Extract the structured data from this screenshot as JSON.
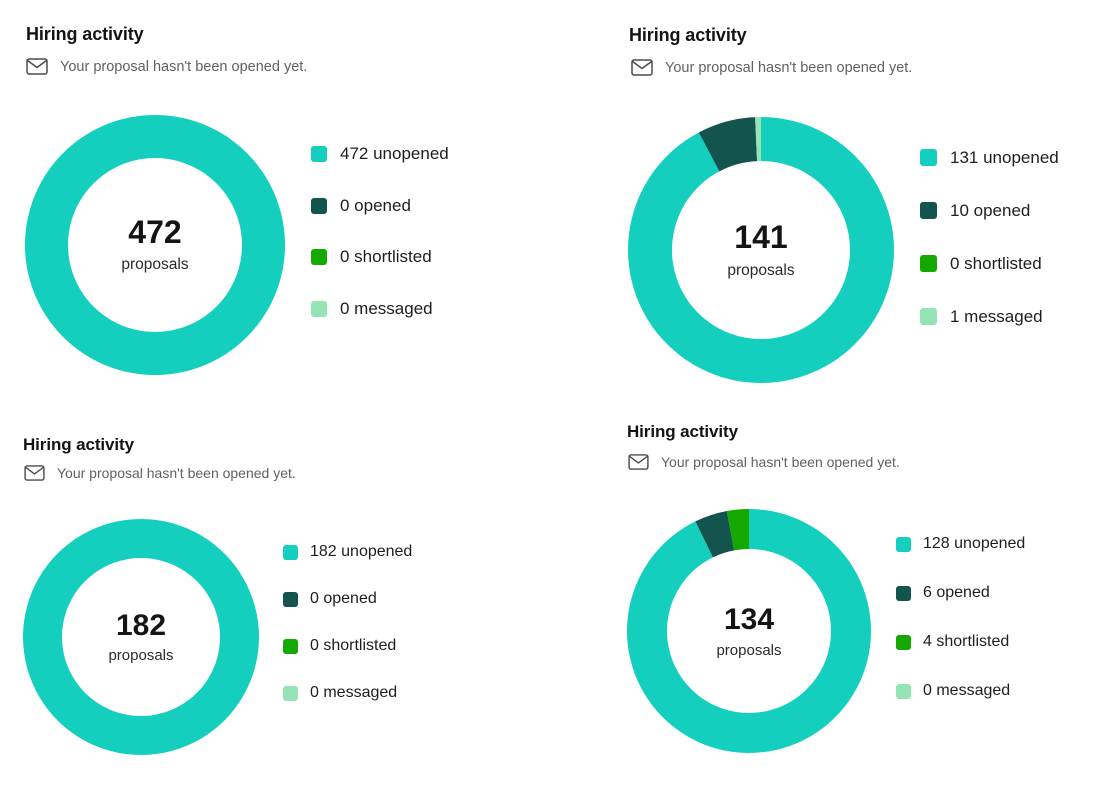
{
  "colors": {
    "unopened": "#14cfbe",
    "opened": "#14544e",
    "shortlisted": "#14a800",
    "messaged": "#95e4b6"
  },
  "chart_data": [
    {
      "type": "pie",
      "title": "Hiring activity",
      "subtitle": "Your proposal hasn't been opened yet.",
      "subtitle_icon": "envelope-icon",
      "total": 472,
      "total_label": "proposals",
      "series": [
        {
          "key": "unopened",
          "name": "unopened",
          "value": 472,
          "legend": "472 unopened"
        },
        {
          "key": "opened",
          "name": "opened",
          "value": 0,
          "legend": "0 opened"
        },
        {
          "key": "shortlisted",
          "name": "shortlisted",
          "value": 0,
          "legend": "0 shortlisted"
        },
        {
          "key": "messaged",
          "name": "messaged",
          "value": 0,
          "legend": "0 messaged"
        }
      ]
    },
    {
      "type": "pie",
      "title": "Hiring activity",
      "subtitle": "Your proposal hasn't been opened yet.",
      "subtitle_icon": "envelope-icon",
      "total": 141,
      "total_label": "proposals",
      "series": [
        {
          "key": "unopened",
          "name": "unopened",
          "value": 131,
          "legend": "131 unopened"
        },
        {
          "key": "opened",
          "name": "opened",
          "value": 10,
          "legend": "10 opened"
        },
        {
          "key": "shortlisted",
          "name": "shortlisted",
          "value": 0,
          "legend": "0 shortlisted"
        },
        {
          "key": "messaged",
          "name": "messaged",
          "value": 1,
          "legend": "1 messaged"
        }
      ]
    },
    {
      "type": "pie",
      "title": "Hiring activity",
      "subtitle": "Your proposal hasn't been opened yet.",
      "subtitle_icon": "envelope-icon",
      "total": 182,
      "total_label": "proposals",
      "series": [
        {
          "key": "unopened",
          "name": "unopened",
          "value": 182,
          "legend": "182 unopened"
        },
        {
          "key": "opened",
          "name": "opened",
          "value": 0,
          "legend": "0 opened"
        },
        {
          "key": "shortlisted",
          "name": "shortlisted",
          "value": 0,
          "legend": "0 shortlisted"
        },
        {
          "key": "messaged",
          "name": "messaged",
          "value": 0,
          "legend": "0 messaged"
        }
      ]
    },
    {
      "type": "pie",
      "title": "Hiring activity",
      "subtitle": "Your proposal hasn't been opened yet.",
      "subtitle_icon": "envelope-icon",
      "total": 134,
      "total_label": "proposals",
      "series": [
        {
          "key": "unopened",
          "name": "unopened",
          "value": 128,
          "legend": "128 unopened"
        },
        {
          "key": "opened",
          "name": "opened",
          "value": 6,
          "legend": "6 opened"
        },
        {
          "key": "shortlisted",
          "name": "shortlisted",
          "value": 4,
          "legend": "4 shortlisted"
        },
        {
          "key": "messaged",
          "name": "messaged",
          "value": 0,
          "legend": "0 messaged"
        }
      ]
    }
  ]
}
